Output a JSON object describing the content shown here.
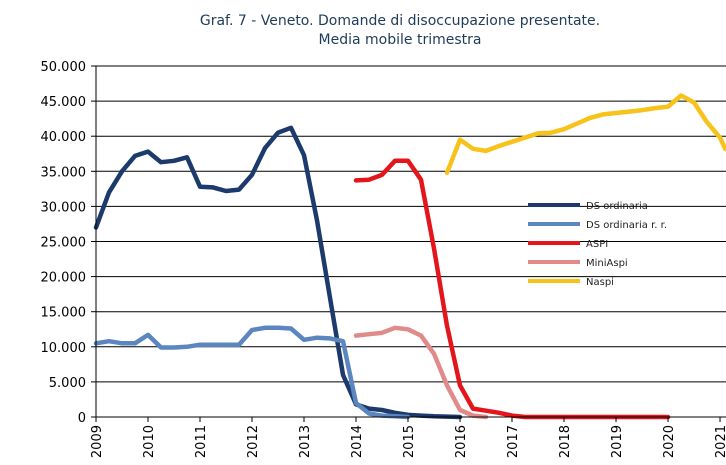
{
  "chart_data": {
    "type": "line",
    "title": "Graf. 7 - Veneto. Domande di disoccupazione presentate.",
    "subtitle": "Media mobile  trimestra",
    "xlim": [
      2009,
      2021.115
    ],
    "xticks": [
      2009,
      2010,
      2011,
      2012,
      2013,
      2014,
      2015,
      2016,
      2017,
      2018,
      2019,
      2020,
      2021
    ],
    "ylim": [
      0,
      50000
    ],
    "yticks": [
      {
        "value": 0,
        "label": "0"
      },
      {
        "value": 5000,
        "label": "5.000"
      },
      {
        "value": 10000,
        "label": "10.000"
      },
      {
        "value": 15000,
        "label": "15.000"
      },
      {
        "value": 20000,
        "label": "20.000"
      },
      {
        "value": 25000,
        "label": "25.000"
      },
      {
        "value": 30000,
        "label": "30.000"
      },
      {
        "value": 35000,
        "label": "35.000"
      },
      {
        "value": 40000,
        "label": "40.000"
      },
      {
        "value": 45000,
        "label": "45.000"
      },
      {
        "value": 50000,
        "label": "50.000"
      }
    ],
    "grid": true,
    "legend": "right",
    "series": [
      {
        "name": "DS ordinaria",
        "color": "#1c3a6b",
        "x": [
          2009,
          2009.25,
          2009.5,
          2009.75,
          2010,
          2010.25,
          2010.5,
          2010.75,
          2011,
          2011.25,
          2011.5,
          2011.75,
          2012,
          2012.25,
          2012.5,
          2012.75,
          2013,
          2013.25,
          2013.5,
          2013.75,
          2014,
          2014.25,
          2014.5,
          2014.75,
          2015,
          2015.25,
          2015.5,
          2015.75,
          2016
        ],
        "values": [
          27000,
          32000,
          35000,
          37200,
          37800,
          36300,
          36500,
          37000,
          32800,
          32700,
          32200,
          32400,
          34500,
          38300,
          40500,
          41200,
          37300,
          28000,
          17000,
          6000,
          1800,
          1200,
          1000,
          600,
          300,
          200,
          100,
          50,
          0
        ]
      },
      {
        "name": "DS ordinaria r. r.",
        "color": "#5b86c0",
        "x": [
          2009,
          2009.25,
          2009.5,
          2009.75,
          2010,
          2010.25,
          2010.5,
          2010.75,
          2011,
          2011.25,
          2011.5,
          2011.75,
          2012,
          2012.25,
          2012.5,
          2012.75,
          2013,
          2013.25,
          2013.5,
          2013.75,
          2014,
          2014.25,
          2014.5,
          2014.75,
          2015
        ],
        "values": [
          10500,
          10800,
          10500,
          10500,
          11700,
          9900,
          9900,
          10000,
          10300,
          10300,
          10300,
          10300,
          12400,
          12700,
          12700,
          12600,
          11000,
          11300,
          11200,
          10800,
          2000,
          500,
          200,
          100,
          0
        ]
      },
      {
        "name": "ASPI",
        "color": "#e3161b",
        "x": [
          2014,
          2014.25,
          2014.5,
          2014.75,
          2015,
          2015.25,
          2015.5,
          2015.75,
          2016,
          2016.25,
          2016.5,
          2016.75,
          2017,
          2017.25,
          2018,
          2019,
          2020
        ],
        "values": [
          33700,
          33800,
          34500,
          36500,
          36500,
          33800,
          24000,
          13000,
          4500,
          1200,
          900,
          600,
          200,
          0,
          0,
          0,
          0
        ]
      },
      {
        "name": "MiniAspi",
        "color": "#e08a8a",
        "x": [
          2014,
          2014.25,
          2014.5,
          2014.75,
          2015,
          2015.25,
          2015.5,
          2015.75,
          2016,
          2016.25,
          2016.5
        ],
        "values": [
          11600,
          11800,
          12000,
          12700,
          12500,
          11600,
          9000,
          4500,
          1000,
          200,
          0
        ]
      },
      {
        "name": "Naspi",
        "color": "#f7c21a",
        "x": [
          2015.75,
          2016,
          2016.25,
          2016.5,
          2016.75,
          2017,
          2017.25,
          2017.5,
          2017.75,
          2018,
          2018.25,
          2018.5,
          2018.75,
          2019,
          2019.25,
          2019.5,
          2019.75,
          2020,
          2020.25,
          2020.5,
          2020.75,
          2021,
          2021.1
        ],
        "values": [
          34800,
          39500,
          38200,
          37900,
          38600,
          39200,
          39800,
          40400,
          40500,
          41000,
          41800,
          42600,
          43100,
          43300,
          43500,
          43700,
          44000,
          44200,
          45800,
          44800,
          42000,
          39800,
          38200
        ]
      }
    ]
  }
}
